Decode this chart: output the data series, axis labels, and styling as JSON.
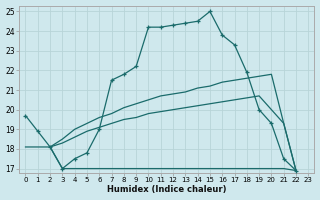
{
  "xlabel": "Humidex (Indice chaleur)",
  "xlim": [
    -0.5,
    23.5
  ],
  "ylim": [
    16.8,
    25.3
  ],
  "yticks": [
    17,
    18,
    19,
    20,
    21,
    22,
    23,
    24,
    25
  ],
  "xticks": [
    0,
    1,
    2,
    3,
    4,
    5,
    6,
    7,
    8,
    9,
    10,
    11,
    12,
    13,
    14,
    15,
    16,
    17,
    18,
    19,
    20,
    21,
    22,
    23
  ],
  "bg_color": "#cfe8ed",
  "grid_color": "#b8d4d8",
  "line_color": "#1a6b6b",
  "series": [
    {
      "x": [
        0,
        1,
        2,
        3,
        4,
        5,
        6,
        7,
        8,
        9,
        10,
        11,
        12,
        13,
        14,
        15,
        16,
        17,
        18,
        19,
        20,
        21,
        22
      ],
      "y": [
        19.7,
        18.9,
        18.1,
        17.0,
        17.5,
        17.8,
        19.0,
        21.5,
        21.8,
        22.2,
        24.2,
        24.2,
        24.3,
        24.4,
        24.5,
        25.0,
        23.8,
        23.3,
        21.9,
        20.0,
        19.3,
        17.5,
        16.9
      ],
      "marker": true
    },
    {
      "x": [
        0,
        1,
        2,
        3,
        4,
        5,
        6,
        7,
        8,
        9,
        10,
        11,
        12,
        13,
        14,
        15,
        16,
        17,
        18,
        19,
        20,
        21,
        22
      ],
      "y": [
        18.1,
        18.1,
        18.1,
        17.0,
        17.0,
        17.0,
        17.0,
        17.0,
        17.0,
        17.0,
        17.0,
        17.0,
        17.0,
        17.0,
        17.0,
        17.0,
        17.0,
        17.0,
        17.0,
        17.0,
        17.0,
        17.0,
        16.9
      ],
      "marker": false
    },
    {
      "x": [
        2,
        3,
        4,
        5,
        6,
        7,
        8,
        9,
        10,
        11,
        12,
        13,
        14,
        15,
        16,
        17,
        18,
        19,
        20,
        21,
        22
      ],
      "y": [
        18.1,
        18.5,
        19.0,
        19.3,
        19.6,
        19.8,
        20.1,
        20.3,
        20.5,
        20.7,
        20.8,
        20.9,
        21.1,
        21.2,
        21.4,
        21.5,
        21.6,
        21.7,
        21.8,
        19.3,
        16.9
      ],
      "marker": false
    },
    {
      "x": [
        2,
        3,
        4,
        5,
        6,
        7,
        8,
        9,
        10,
        11,
        12,
        13,
        14,
        15,
        16,
        17,
        18,
        19,
        20,
        21,
        22
      ],
      "y": [
        18.1,
        18.3,
        18.6,
        18.9,
        19.1,
        19.3,
        19.5,
        19.6,
        19.8,
        19.9,
        20.0,
        20.1,
        20.2,
        20.3,
        20.4,
        20.5,
        20.6,
        20.7,
        20.0,
        19.3,
        16.9
      ],
      "marker": false
    }
  ]
}
